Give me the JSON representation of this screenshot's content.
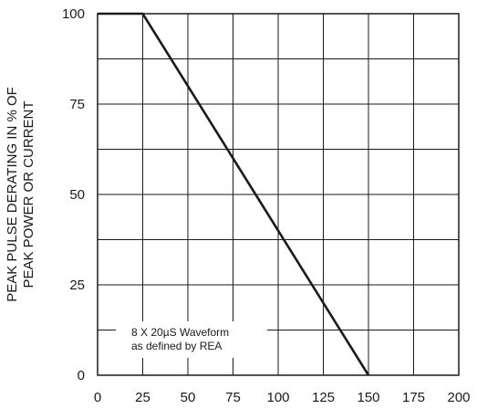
{
  "chart_data": {
    "type": "line",
    "ylabel_lines": [
      "PEAK PULSE DERATING IN % OF",
      "PEAK POWER OR CURRENT"
    ],
    "xlabel": "",
    "xlim": [
      0,
      200
    ],
    "ylim": [
      0,
      100
    ],
    "x_ticks": [
      "0",
      "25",
      "50",
      "75",
      "100",
      "125",
      "150",
      "175",
      "200"
    ],
    "y_ticks": [
      "0",
      "25",
      "50",
      "75",
      "100"
    ],
    "grid": true,
    "series": [
      {
        "x": [
          0,
          25,
          150
        ],
        "y": [
          100,
          100,
          0
        ],
        "color": "#1a1a1a"
      }
    ],
    "annotation_lines": [
      "8 X 20µS Waveform",
      "as defined by REA"
    ]
  }
}
